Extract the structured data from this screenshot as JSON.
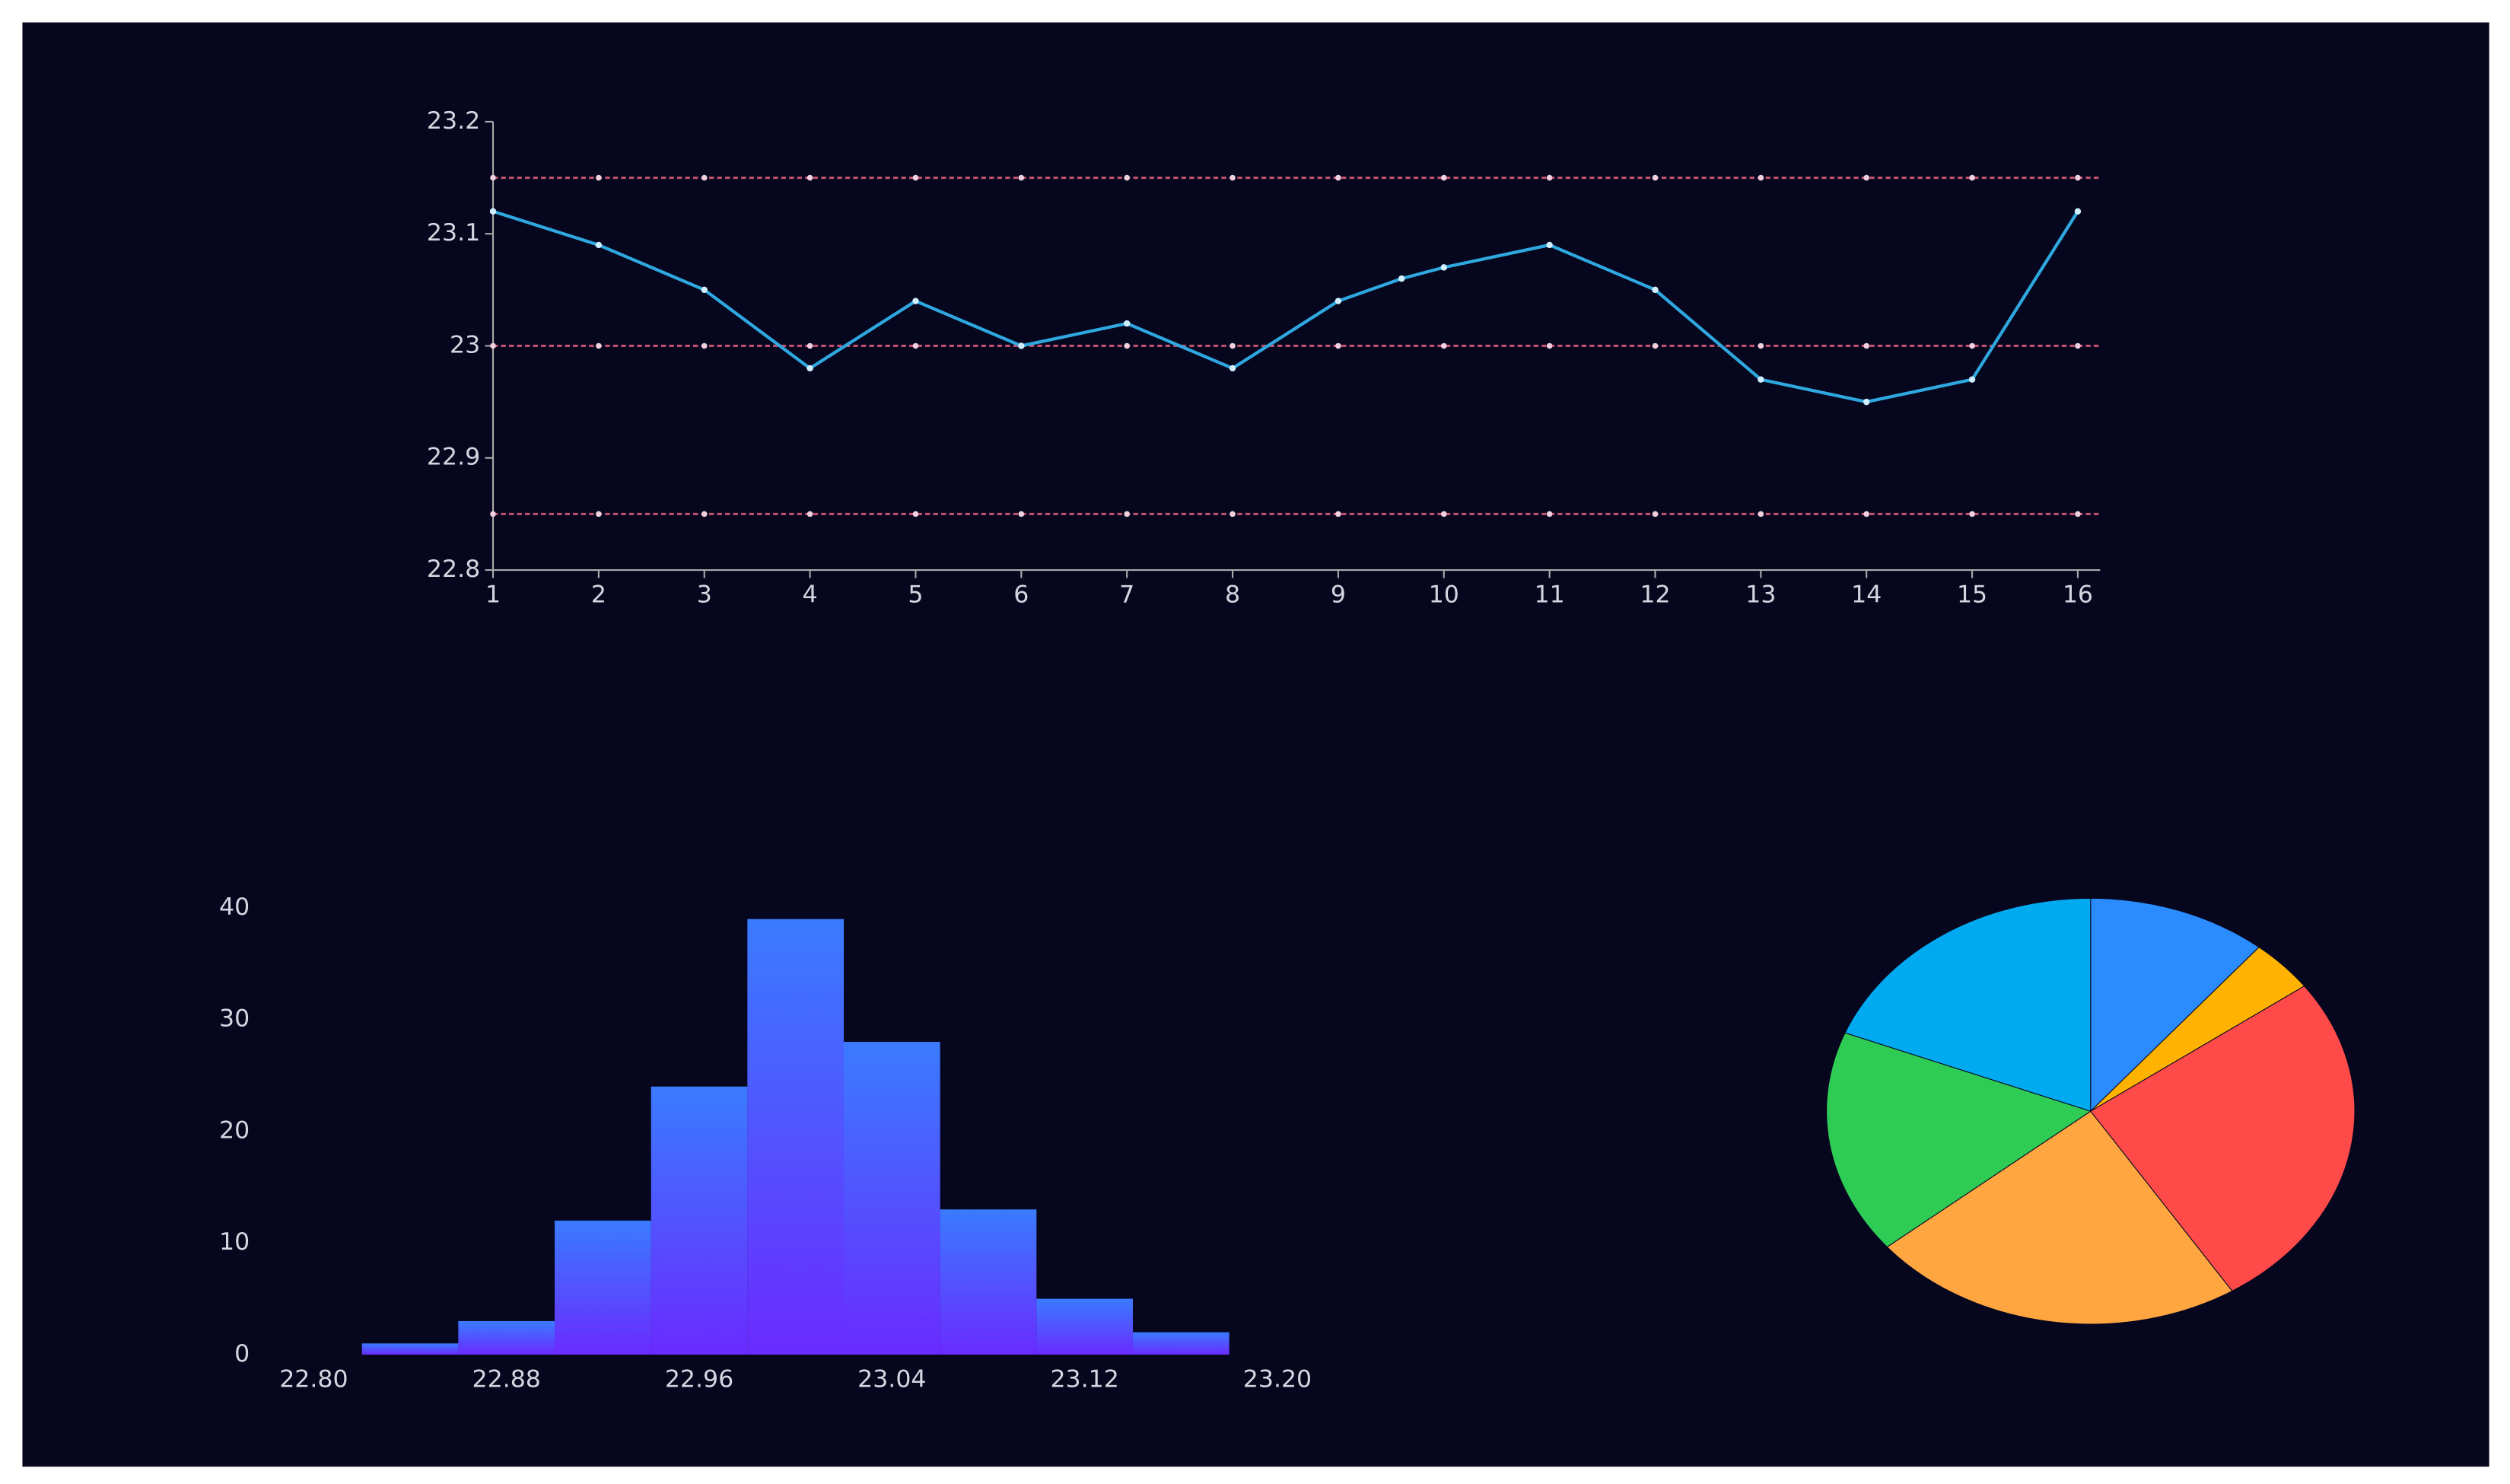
{
  "chart_data": [
    {
      "type": "line",
      "x": [
        1,
        2,
        3,
        4,
        5,
        6,
        7,
        8,
        9,
        9.6,
        10,
        11,
        12,
        13,
        14,
        15,
        16
      ],
      "series": [
        {
          "color": "#2fa8e0",
          "values": [
            23.12,
            23.09,
            23.05,
            22.98,
            23.04,
            23.0,
            23.02,
            22.98,
            23.04,
            23.06,
            23.07,
            23.09,
            23.05,
            22.97,
            22.95,
            22.97,
            23.12
          ]
        }
      ],
      "reference_lines": [
        23.15,
        23.0,
        22.85
      ],
      "reference_color": "#c0506e",
      "xlim": [
        1,
        16
      ],
      "xticks": [
        1,
        2,
        3,
        4,
        5,
        6,
        7,
        8,
        9,
        10,
        11,
        12,
        13,
        14,
        15,
        16
      ],
      "ylim": [
        22.8,
        23.2
      ],
      "yticks": [
        22.8,
        22.9,
        23,
        23.1,
        23.2
      ]
    },
    {
      "type": "histogram",
      "bins": [
        22.82,
        22.86,
        22.9,
        22.94,
        22.98,
        23.02,
        23.06,
        23.1,
        23.14,
        23.18
      ],
      "values": [
        1,
        3,
        12,
        24,
        39,
        28,
        13,
        5,
        2
      ],
      "color": "#3a7bff",
      "color_bottom": "#6a2bff",
      "xlim": [
        22.8,
        23.2
      ],
      "xticks": [
        {
          "value": 22.8,
          "label": "22.80"
        },
        {
          "value": 22.88,
          "label": "22.88"
        },
        {
          "value": 22.96,
          "label": "22.96"
        },
        {
          "value": 23.04,
          "label": "23.04"
        },
        {
          "value": 23.12,
          "label": "23.12"
        },
        {
          "value": 23.2,
          "label": "23.20"
        }
      ],
      "ylim": [
        0,
        40
      ],
      "yticks": [
        0,
        10,
        20,
        30,
        40
      ]
    },
    {
      "type": "pie",
      "values": [
        11,
        4,
        26,
        23,
        17,
        19
      ],
      "colors": [
        "#2b8cff",
        "#ffb300",
        "#ff4a4a",
        "#ffa640",
        "#2ecc55",
        "#00aaf0"
      ]
    }
  ]
}
